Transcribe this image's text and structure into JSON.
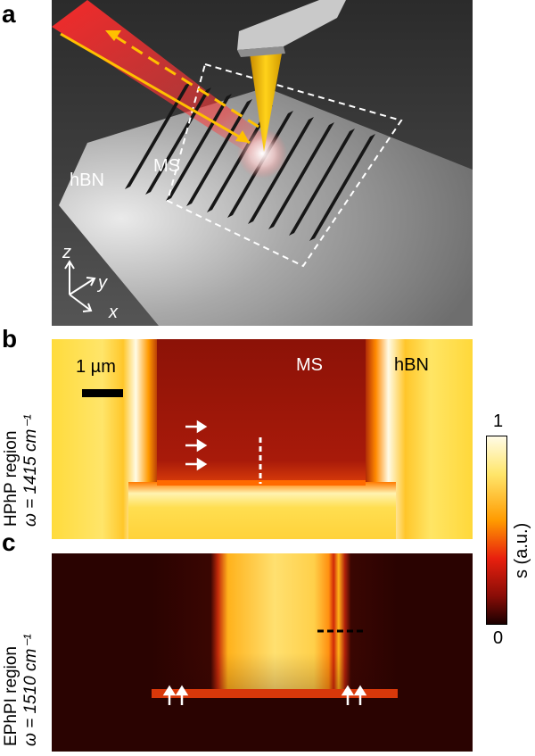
{
  "panels": {
    "a": {
      "letter": "a",
      "labels": {
        "hbn": "hBN",
        "ms": "MS"
      },
      "axes": {
        "z": "z",
        "y": "y",
        "x": "x"
      }
    },
    "b": {
      "letter": "b",
      "side_label_line1": "HPhP region",
      "side_label_line2": "ω = 1415 cm⁻¹",
      "scalebar_label": "1 µm",
      "labels": {
        "ms": "MS",
        "hbn": "hBN"
      }
    },
    "c": {
      "letter": "c",
      "side_label_line1": "EPhPI region",
      "side_label_line2": "ω = 1510 cm⁻¹"
    }
  },
  "colorbar": {
    "max_label": "1",
    "min_label": "0",
    "axis_label": "s (a.u.)",
    "colors": {
      "top": "#fffbe6",
      "upper": "#ffe66b",
      "mid_high": "#ff9a00",
      "mid": "#e8200e",
      "low": "#8a0d07",
      "bottom": "#1b0000"
    }
  }
}
